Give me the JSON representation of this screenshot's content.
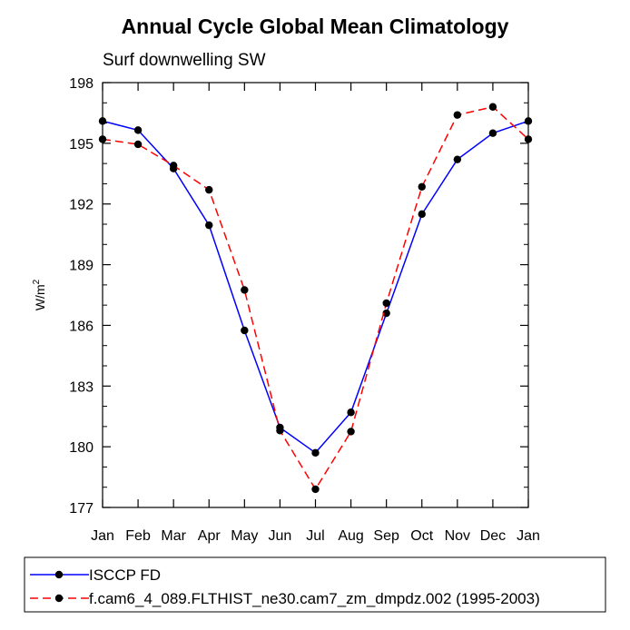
{
  "chart_data": {
    "type": "line",
    "title": "Annual Cycle Global Mean Climatology",
    "subtitle": "Surf downwelling SW",
    "ylabel": "W/m",
    "ylabel_sup": "2",
    "xlabel": "",
    "categories": [
      "Jan",
      "Feb",
      "Mar",
      "Apr",
      "May",
      "Jun",
      "Jul",
      "Aug",
      "Sep",
      "Oct",
      "Nov",
      "Dec",
      "Jan"
    ],
    "ylim": [
      177,
      198
    ],
    "yticks": [
      177,
      180,
      183,
      186,
      189,
      192,
      195,
      198
    ],
    "grid": false,
    "legend_position": "bottom",
    "series": [
      {
        "name": "ISCCP FD",
        "color": "#0000ff",
        "dash": "solid",
        "values": [
          196.1,
          195.65,
          193.75,
          190.95,
          185.75,
          180.95,
          179.7,
          181.7,
          186.6,
          191.5,
          194.2,
          195.5,
          196.1
        ]
      },
      {
        "name": "f.cam6_4_089.FLTHIST_ne30.cam7_zm_dmpdz.002 (1995-2003)",
        "color": "#ff0000",
        "dash": "dashed",
        "values": [
          195.2,
          194.95,
          193.9,
          192.7,
          187.75,
          180.8,
          177.9,
          180.75,
          187.1,
          192.85,
          196.4,
          196.8,
          195.2
        ]
      }
    ]
  }
}
